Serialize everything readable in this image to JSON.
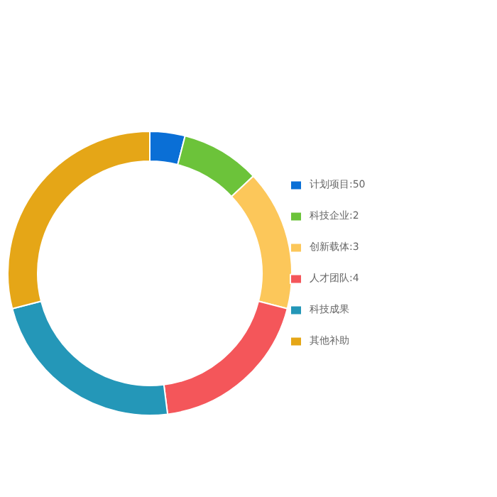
{
  "chart_data": {
    "type": "donut",
    "categories": [
      "计划项目:50",
      "科技企业:2",
      "创新载体:3",
      "人才团队:4",
      "科技成果",
      "其他补助"
    ],
    "values": [
      4,
      9,
      16,
      19,
      23,
      29
    ],
    "colors": [
      "#0a6fd6",
      "#6cc33a",
      "#fcc75a",
      "#f4565a",
      "#2497b8",
      "#e5a617"
    ],
    "legend": "right"
  }
}
